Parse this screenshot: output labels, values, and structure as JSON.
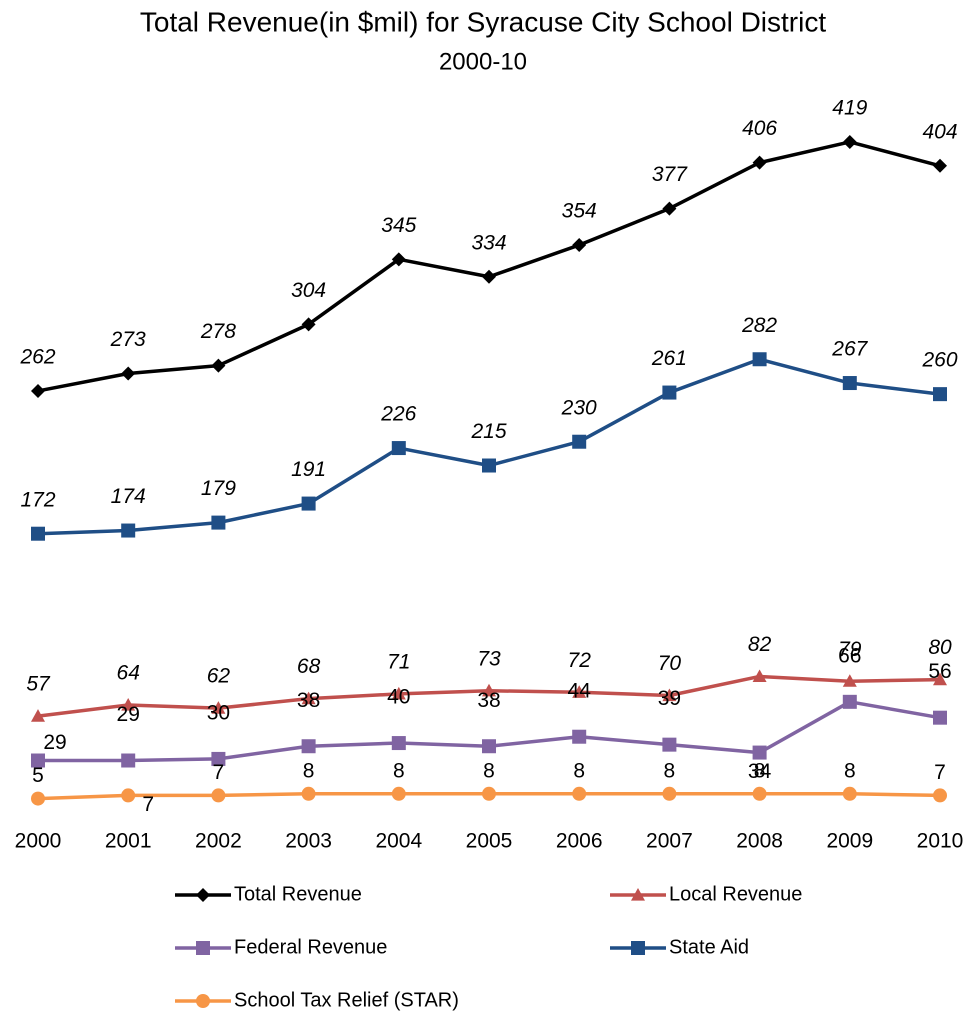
{
  "chart_data": {
    "type": "line",
    "title": "Total Revenue(in $mil) for Syracuse City School District",
    "subtitle": "2000-10",
    "categories": [
      "2000",
      "2001",
      "2002",
      "2003",
      "2004",
      "2005",
      "2006",
      "2007",
      "2008",
      "2009",
      "2010"
    ],
    "series": [
      {
        "name": "Total Revenue",
        "color": "#000000",
        "marker": "diamond",
        "values": [
          262,
          273,
          278,
          304,
          345,
          334,
          354,
          377,
          406,
          419,
          404
        ]
      },
      {
        "name": "Local Revenue",
        "color": "#c0504d",
        "marker": "triangle",
        "values": [
          57,
          64,
          62,
          68,
          71,
          73,
          72,
          70,
          82,
          79,
          80
        ]
      },
      {
        "name": "Federal Revenue",
        "color": "#8064a2",
        "marker": "square",
        "values": [
          29,
          29,
          30,
          38,
          40,
          38,
          44,
          39,
          34,
          66,
          56
        ]
      },
      {
        "name": "State Aid",
        "color": "#1f4e86",
        "marker": "square",
        "values": [
          172,
          174,
          179,
          191,
          226,
          215,
          230,
          261,
          282,
          267,
          260
        ]
      },
      {
        "name": "School Tax Relief (STAR)",
        "color": "#f79646",
        "marker": "circle",
        "values": [
          5,
          7,
          7,
          8,
          8,
          8,
          8,
          8,
          8,
          8,
          7
        ]
      }
    ],
    "grid": false
  }
}
